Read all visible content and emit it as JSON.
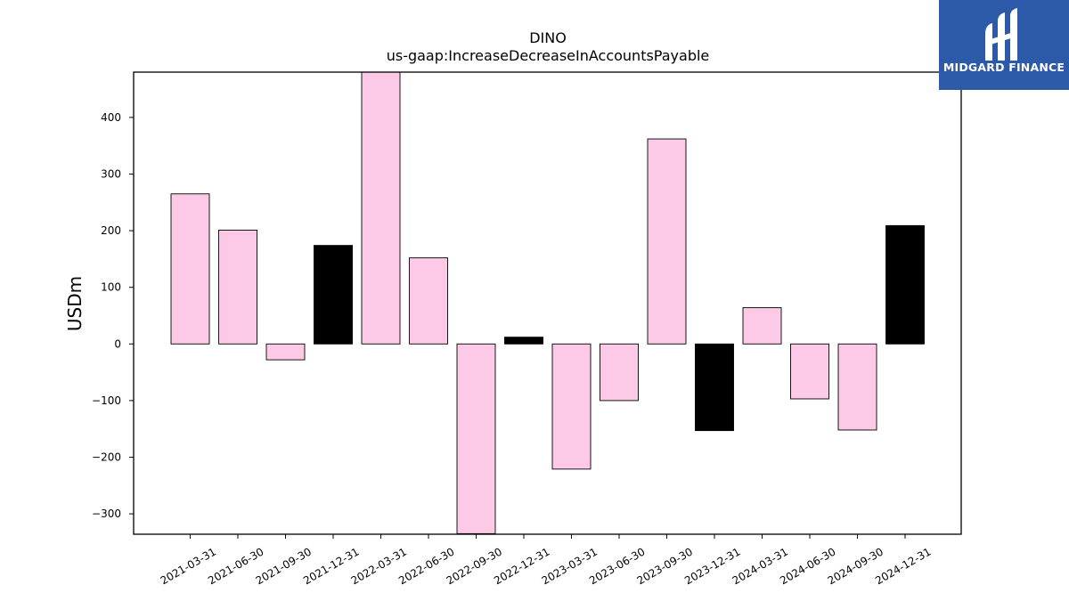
{
  "chart_data": {
    "type": "bar",
    "title": "DINO",
    "subtitle": "us-gaap:IncreaseDecreaseInAccountsPayable",
    "xlabel": "",
    "ylabel": "USDm",
    "categories": [
      "2021-03-31",
      "2021-06-30",
      "2021-09-30",
      "2021-12-31",
      "2022-03-31",
      "2022-06-30",
      "2022-09-30",
      "2022-12-31",
      "2023-03-31",
      "2023-06-30",
      "2023-09-30",
      "2023-12-31",
      "2024-03-31",
      "2024-06-30",
      "2024-09-30",
      "2024-12-31"
    ],
    "values": [
      265,
      201,
      -28,
      174,
      480,
      152,
      -335,
      12,
      -221,
      -100,
      362,
      -153,
      64,
      -97,
      -152,
      209
    ],
    "bar_colors": [
      "#fccae6",
      "#fccae6",
      "#fccae6",
      "#000000",
      "#fccae6",
      "#fccae6",
      "#fccae6",
      "#000000",
      "#fccae6",
      "#fccae6",
      "#fccae6",
      "#000000",
      "#fccae6",
      "#fccae6",
      "#fccae6",
      "#000000"
    ],
    "ylim": [
      -336,
      480
    ],
    "yticks": [
      -300,
      -200,
      -100,
      0,
      100,
      200,
      300,
      400
    ],
    "ytick_labels": [
      "−300",
      "−200",
      "−100",
      "0",
      "100",
      "200",
      "300",
      "400"
    ],
    "grid": false
  },
  "logo": {
    "text": "MIDGARD FINANCE",
    "background": "#2d5aa8",
    "icon": "midgard-logo-icon"
  }
}
